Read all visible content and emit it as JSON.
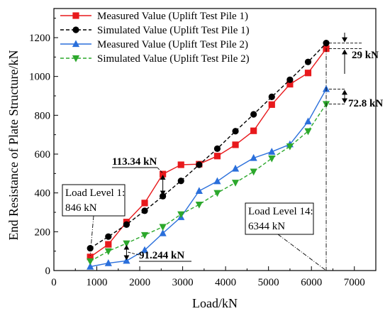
{
  "chart_data": {
    "type": "line",
    "title": "",
    "xlabel": "Load/kN",
    "ylabel": "End Resistance of Plate Structure/kN",
    "xlim": [
      0,
      7500
    ],
    "ylim": [
      0,
      1350
    ],
    "xticks": [
      0,
      1000,
      2000,
      3000,
      4000,
      5000,
      6000,
      7000
    ],
    "yticks": [
      0,
      200,
      400,
      600,
      800,
      1000,
      1200
    ],
    "grid": false,
    "legend_position": "top-left",
    "series": [
      {
        "name": "Measured Value (Uplift Test Pile 1)",
        "color": "#e8191c",
        "marker": "square",
        "line_style": "solid",
        "x": [
          846,
          1269,
          1692,
          2115,
          2538,
          2961,
          3384,
          3807,
          4230,
          4653,
          5076,
          5499,
          5922,
          6344
        ],
        "y": [
          70,
          135,
          250,
          348,
          497,
          545,
          548,
          590,
          648,
          720,
          855,
          960,
          1018,
          1143
        ]
      },
      {
        "name": "Simulated Value (Uplift Test Pile 1)",
        "color": "#000000",
        "marker": "circle",
        "line_style": "dashed",
        "x": [
          846,
          1269,
          1692,
          2115,
          2538,
          2961,
          3384,
          3807,
          4230,
          4653,
          5076,
          5499,
          5922,
          6344
        ],
        "y": [
          115,
          175,
          237,
          308,
          383,
          462,
          545,
          628,
          718,
          805,
          895,
          983,
          1075,
          1172
        ]
      },
      {
        "name": "Measured Value (Uplift Test Pile 2)",
        "color": "#2a6fdb",
        "marker": "triangle-up",
        "line_style": "solid",
        "x": [
          846,
          1269,
          1692,
          2115,
          2538,
          2961,
          3384,
          3807,
          4230,
          4653,
          5076,
          5499,
          5922,
          6344
        ],
        "y": [
          20,
          38,
          50,
          105,
          192,
          275,
          410,
          460,
          525,
          580,
          612,
          650,
          768,
          935
        ]
      },
      {
        "name": "Simulated Value (Uplift Test Pile 2)",
        "color": "#2ca82c",
        "marker": "triangle-down",
        "line_style": "dashed",
        "x": [
          846,
          1269,
          1692,
          2115,
          2538,
          2961,
          3384,
          3807,
          4230,
          4653,
          5076,
          5499,
          5922,
          6344
        ],
        "y": [
          48,
          100,
          140,
          183,
          225,
          290,
          340,
          400,
          453,
          510,
          578,
          640,
          718,
          858
        ]
      }
    ],
    "annotations": {
      "diff_113": "113.34 kN",
      "diff_91": "91.244 kN",
      "diff_29": "29 kN",
      "diff_72": "72.8 kN",
      "level1_line1": "Load Level 1:",
      "level1_line2": "846 kN",
      "level14_line1": "Load Level 14:",
      "level14_line2": "6344 kN"
    }
  }
}
